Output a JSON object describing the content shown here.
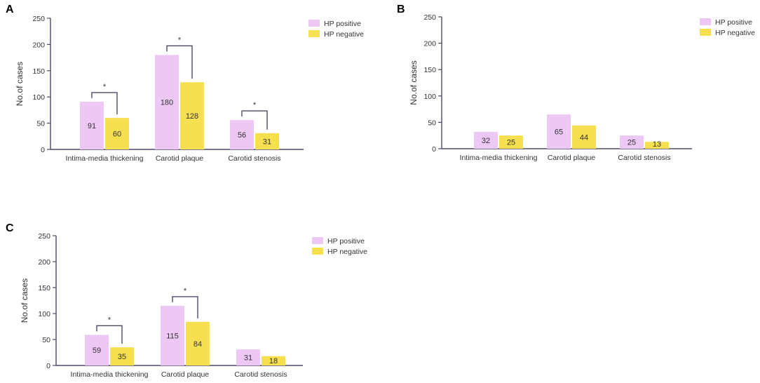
{
  "colors": {
    "positive": "#edc8f5",
    "negative": "#f7e04f",
    "axis": "#4a4a6a",
    "bracket": "#4a4a6a"
  },
  "chart_data": [
    {
      "panel": "A",
      "type": "bar",
      "ylabel": "No.of cases",
      "ylim": [
        0,
        250
      ],
      "yticks": [
        0,
        50,
        100,
        150,
        200,
        250
      ],
      "categories": [
        "Intima-media thickening",
        "Carotid plaque",
        "Carotid stenosis"
      ],
      "series": [
        {
          "name": "HP positive",
          "values": [
            91,
            180,
            56
          ],
          "labels": [
            "91",
            "180",
            "56"
          ]
        },
        {
          "name": "HP negative",
          "values": [
            60,
            128,
            31
          ],
          "labels": [
            "60",
            "128",
            "31"
          ]
        }
      ],
      "significance": [
        {
          "category": 0,
          "symbol": "*"
        },
        {
          "category": 1,
          "symbol": "*"
        },
        {
          "category": 2,
          "symbol": "*"
        }
      ]
    },
    {
      "panel": "B",
      "type": "bar",
      "ylabel": "No.of cases",
      "ylim": [
        0,
        250
      ],
      "yticks": [
        0,
        50,
        100,
        150,
        200,
        250
      ],
      "categories": [
        "Intima-media thickening",
        "Carotid plaque",
        "Carotid stenosis"
      ],
      "series": [
        {
          "name": "HP positive",
          "values": [
            32,
            65,
            25
          ],
          "labels": [
            "32",
            "65",
            "25"
          ]
        },
        {
          "name": "HP negative",
          "values": [
            25,
            44,
            13
          ],
          "labels": [
            "25",
            "44",
            "13"
          ]
        }
      ],
      "significance": []
    },
    {
      "panel": "C",
      "type": "bar",
      "ylabel": "No.of cases",
      "ylim": [
        0,
        250
      ],
      "yticks": [
        0,
        50,
        100,
        150,
        200,
        250
      ],
      "categories": [
        "Intima-media thickening",
        "Carotid plaque",
        "Carotid stenosis"
      ],
      "series": [
        {
          "name": "HP positive",
          "values": [
            59,
            115,
            31
          ],
          "labels": [
            "59",
            "115",
            "31"
          ]
        },
        {
          "name": "HP negative",
          "values": [
            35,
            84,
            18
          ],
          "labels": [
            "35",
            "84",
            "18"
          ]
        }
      ],
      "significance": [
        {
          "category": 0,
          "symbol": "*"
        },
        {
          "category": 1,
          "symbol": "*"
        }
      ]
    }
  ]
}
